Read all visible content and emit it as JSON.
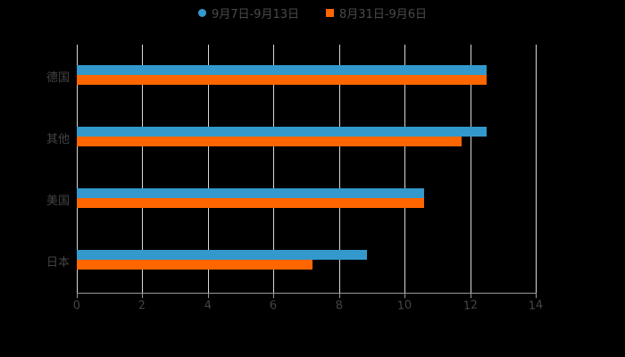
{
  "chart_data": {
    "type": "bar",
    "orientation": "horizontal",
    "title": "",
    "xlabel": "",
    "ylabel": "",
    "xlim": [
      0,
      14
    ],
    "xticks": [
      "0",
      "2",
      "4",
      "6",
      "8",
      "10",
      "12",
      "14"
    ],
    "categories": [
      "德国",
      "其他",
      "美国",
      "日本"
    ],
    "series": [
      {
        "name": "9月7日-9月13日",
        "color": "#3399cc",
        "values": [
          12.5,
          12.5,
          10.6,
          8.85
        ]
      },
      {
        "name": "8月31日-9月6日",
        "color": "#ff6600",
        "values": [
          12.5,
          11.75,
          10.6,
          7.2
        ]
      }
    ],
    "grid": true,
    "legend_position": "top"
  },
  "legend": {
    "series0": "9月7日-9月13日",
    "series1": "8月31日-9月6日"
  }
}
